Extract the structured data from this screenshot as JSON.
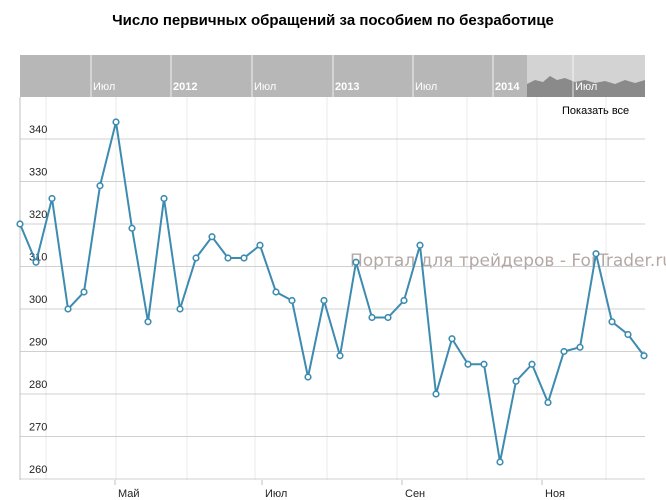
{
  "chart_data": {
    "type": "line",
    "title": "Число первичных обращений за пособием по безработице",
    "xlabel": "",
    "ylabel": "",
    "x_tick_labels": [
      "Май",
      "Июл",
      "Сен",
      "Ноя"
    ],
    "y_ticks": [
      260,
      270,
      280,
      290,
      300,
      310,
      320,
      330,
      340
    ],
    "ylim": [
      260,
      350
    ],
    "grid": true,
    "series": [
      {
        "color": "#3d8bb0",
        "values": [
          320,
          311,
          326,
          300,
          304,
          329,
          344,
          319,
          297,
          326,
          300,
          312,
          317,
          312,
          312,
          315,
          304,
          302,
          284,
          302,
          289,
          311,
          298,
          298,
          302,
          315,
          280,
          293,
          287,
          287,
          264,
          283,
          287,
          278,
          290,
          291,
          313,
          297,
          294,
          289
        ]
      }
    ]
  },
  "navigator": {
    "labels": [
      {
        "text": "Июл",
        "bold": false
      },
      {
        "text": "2012",
        "bold": true
      },
      {
        "text": "Июл",
        "bold": false
      },
      {
        "text": "2013",
        "bold": true
      },
      {
        "text": "Июл",
        "bold": false
      },
      {
        "text": "2014",
        "bold": true
      },
      {
        "text": "Июл",
        "bold": false
      }
    ]
  },
  "show_all_label": "Показать все",
  "watermark": "Портал для трейдеров - ForTrader.ru"
}
